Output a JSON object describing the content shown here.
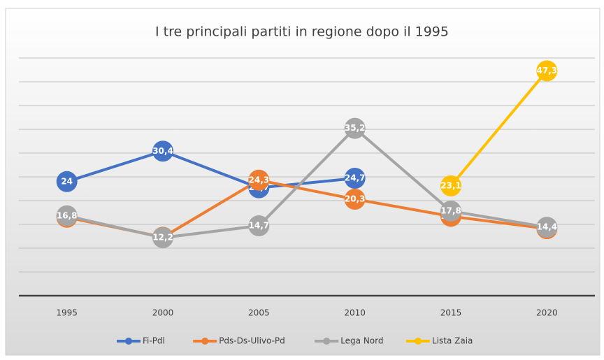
{
  "chart_data": {
    "type": "line",
    "title": "I tre principali partiti in regione dopo il 1995",
    "categories": [
      "1995",
      "2000",
      "2005",
      "2010",
      "2015",
      "2020"
    ],
    "series": [
      {
        "name": "Fi-Pdl",
        "color": "#4472c4",
        "values": [
          24,
          30.4,
          22.7,
          24.7,
          null,
          null
        ],
        "value_labels": [
          "24",
          "30,4",
          "22,7",
          "24,7",
          null,
          null
        ]
      },
      {
        "name": "Pds-Ds-Ulivo-Pd",
        "color": "#ed7d31",
        "values": [
          16.5,
          12.3,
          24.3,
          20.3,
          16.7,
          14.1
        ],
        "value_labels": [
          "16,5",
          "12,3",
          "24,3",
          "20,3",
          "16,7",
          "14,1"
        ]
      },
      {
        "name": "Lega Nord",
        "color": "#a5a5a5",
        "values": [
          16.8,
          12.2,
          14.7,
          35.2,
          17.8,
          14.4
        ],
        "value_labels": [
          "16,8",
          "12,2",
          "14,7",
          "35,2",
          "17,8",
          "14,4"
        ]
      },
      {
        "name": "Lista Zaia",
        "color": "#ffc000",
        "values": [
          null,
          null,
          null,
          null,
          23.1,
          47.3
        ],
        "value_labels": [
          null,
          null,
          null,
          null,
          "23,1",
          "47,3"
        ]
      }
    ],
    "ylim": [
      0,
      50
    ],
    "yticks": [
      0,
      5,
      10,
      15,
      20,
      25,
      30,
      35,
      40,
      45,
      50
    ],
    "grid": true,
    "legend": "bottom"
  }
}
